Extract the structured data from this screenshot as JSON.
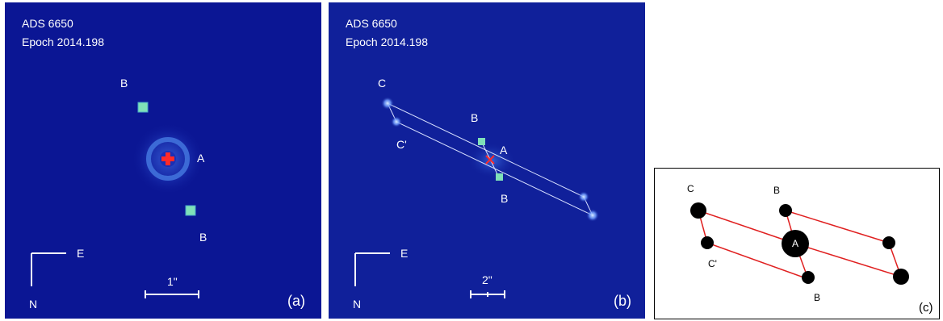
{
  "panel_a": {
    "title": "ADS 6650",
    "epoch": "Epoch 2014.198",
    "label_b_top": "B",
    "label_a": "A",
    "label_b_bottom": "B",
    "compass_e": "E",
    "compass_n": "N",
    "scale": "1\"",
    "tag": "(a)"
  },
  "panel_b": {
    "title": "ADS 6650",
    "epoch": "Epoch 2014.198",
    "label_c": "C",
    "label_c_prime": "C'",
    "label_b_top": "B",
    "label_a": "A",
    "label_b_bottom": "B",
    "compass_e": "E",
    "compass_n": "N",
    "scale": "2\"",
    "tag": "(b)"
  },
  "panel_c": {
    "label_c": "C",
    "label_c_prime": "C'",
    "label_b_top": "B",
    "label_a": "A",
    "label_b_bottom": "B",
    "tag": "(c)"
  },
  "colors": {
    "sky_a": "#0b1694",
    "sky_b": "#10209a",
    "marker": "#ff2a2a",
    "star": "#7fe0b8",
    "schematic_line": "#e02020"
  }
}
